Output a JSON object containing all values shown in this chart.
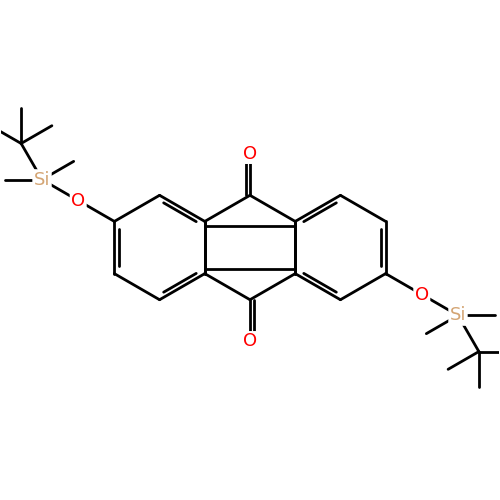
{
  "background_color": "#ffffff",
  "bond_color": "#000000",
  "bond_width": 2.0,
  "o_color": "#ff0000",
  "si_color": "#d4a574",
  "font_size_atom": 13,
  "fig_width": 5.0,
  "fig_height": 5.0,
  "dpi": 100,
  "xlim": [
    0,
    10
  ],
  "ylim": [
    0,
    10
  ],
  "bl": 1.05
}
